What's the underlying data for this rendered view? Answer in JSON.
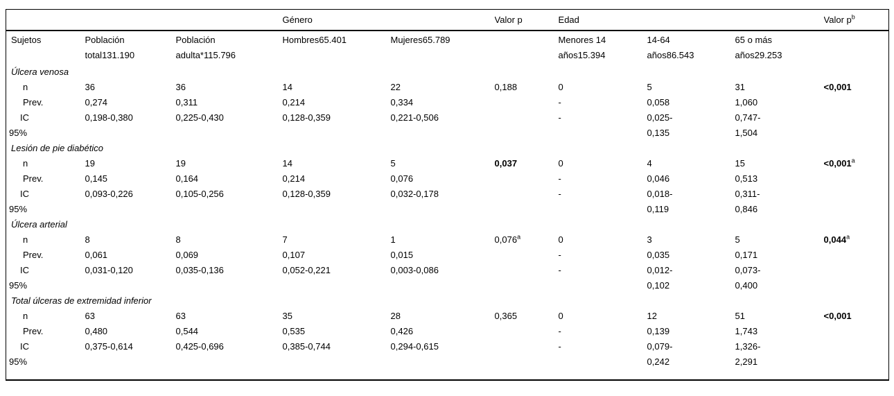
{
  "table": {
    "header_groups": {
      "genero": "Género",
      "valor_p": "Valor p",
      "edad": "Edad",
      "valor_p_b": "Valor p",
      "valor_p_b_sup": "b"
    },
    "columns": {
      "sujetos": "Sujetos",
      "poblacion_total": "Población\ntotal131.190",
      "poblacion_adulta": "Población\nadulta*115.796",
      "hombres": "Hombres65.401",
      "mujeres": "Mujeres65.789",
      "menores_14": "Menores 14\naños15.394",
      "anos_14_64": "14-64\naños86.543",
      "anos_65_mas": "65 o más\naños29.253"
    },
    "sections": [
      {
        "title": "Úlcera venosa",
        "rows": [
          {
            "label": "n",
            "cells": [
              "36",
              "36",
              "14",
              "22",
              {
                "t": "0,188",
                "b": false,
                "sup": ""
              },
              "0",
              "5",
              "31",
              {
                "t": "<0,001",
                "b": true,
                "sup": ""
              }
            ]
          },
          {
            "label": "Prev.",
            "cells": [
              "0,274",
              "0,311",
              "0,214",
              "0,334",
              "",
              "-",
              "0,058",
              "1,060",
              ""
            ]
          },
          {
            "label": "IC\n95%",
            "cells": [
              "0,198-0,380",
              "0,225-0,430",
              "0,128-0,359",
              "0,221-0,506",
              "",
              "-",
              "0,025-\n0,135",
              "0,747-\n1,504",
              ""
            ]
          }
        ]
      },
      {
        "title": "Lesión de pie diabético",
        "rows": [
          {
            "label": "n",
            "cells": [
              "19",
              "19",
              "14",
              "5",
              {
                "t": "0,037",
                "b": true,
                "sup": ""
              },
              "0",
              "4",
              "15",
              {
                "t": "<0,001",
                "b": true,
                "sup": "a"
              }
            ]
          },
          {
            "label": "Prev.",
            "cells": [
              "0,145",
              "0,164",
              "0,214",
              "0,076",
              "",
              "-",
              "0,046",
              "0,513",
              ""
            ]
          },
          {
            "label": "IC\n95%",
            "cells": [
              "0,093-0,226",
              "0,105-0,256",
              "0,128-0,359",
              "0,032-0,178",
              "",
              "-",
              "0,018-\n0,119",
              "0,311-\n0,846",
              ""
            ]
          }
        ]
      },
      {
        "title": "Úlcera arterial",
        "rows": [
          {
            "label": "n",
            "cells": [
              "8",
              "8",
              "7",
              "1",
              {
                "t": "0,076",
                "b": false,
                "sup": "a"
              },
              "0",
              "3",
              "5",
              {
                "t": "0,044",
                "b": true,
                "sup": "a"
              }
            ]
          },
          {
            "label": "Prev.",
            "cells": [
              "0,061",
              "0,069",
              "0,107",
              "0,015",
              "",
              "-",
              "0,035",
              "0,171",
              ""
            ]
          },
          {
            "label": "IC\n95%",
            "cells": [
              "0,031-0,120",
              "0,035-0,136",
              "0,052-0,221",
              "0,003-0,086",
              "",
              "-",
              "0,012-\n0,102",
              "0,073-\n0,400",
              ""
            ]
          }
        ]
      },
      {
        "title": "Total úlceras de extremidad inferior",
        "rows": [
          {
            "label": "n",
            "cells": [
              "63",
              "63",
              "35",
              "28",
              {
                "t": "0,365",
                "b": false,
                "sup": ""
              },
              "0",
              "12",
              "51",
              {
                "t": "<0,001",
                "b": true,
                "sup": ""
              }
            ]
          },
          {
            "label": "Prev.",
            "cells": [
              "0,480",
              "0,544",
              "0,535",
              "0,426",
              "",
              "-",
              "0,139",
              "1,743",
              ""
            ]
          },
          {
            "label": "IC\n95%",
            "cells": [
              "0,375-0,614",
              "0,425-0,696",
              "0,385-0,744",
              "0,294-0,615",
              "",
              "-",
              "0,079-\n0,242",
              "1,326-\n2,291",
              ""
            ]
          }
        ]
      }
    ]
  }
}
